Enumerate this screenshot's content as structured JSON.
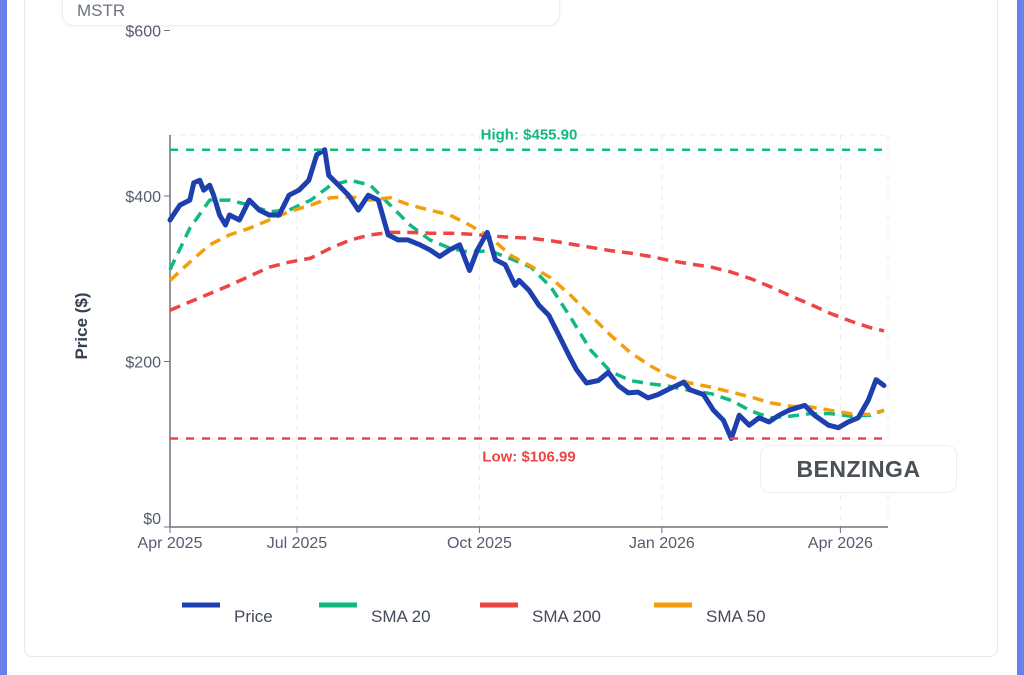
{
  "header": {
    "ticker": "MSTR"
  },
  "watermark": "BENZINGA",
  "chart_data": {
    "type": "line",
    "ylabel": "Price ($)",
    "xlabel": "",
    "ylim": [
      0,
      600
    ],
    "yticks": [
      {
        "value": 0,
        "label": "$0"
      },
      {
        "value": 200,
        "label": "$200"
      },
      {
        "value": 400,
        "label": "$400"
      },
      {
        "value": 600,
        "label": "$600"
      }
    ],
    "xlim": [
      "2025-04-28",
      "2026-04-25"
    ],
    "xticks": [
      {
        "date": "2025-04-28",
        "label": "Apr 2025"
      },
      {
        "date": "2025-07-01",
        "label": "Jul 2025"
      },
      {
        "date": "2025-10-01",
        "label": "Oct 2025"
      },
      {
        "date": "2026-01-01",
        "label": "Jan 2026"
      },
      {
        "date": "2026-04-01",
        "label": "Apr 2026"
      }
    ],
    "grid": true,
    "legend_position": "bottom",
    "colors": {
      "price": "#1e40af",
      "sma20": "#10b981",
      "sma200": "#ef4444",
      "sma50": "#f59e0b"
    },
    "annotations": {
      "high": {
        "value": 455.9,
        "label": "High: $455.90",
        "color": "#10b981"
      },
      "low": {
        "value": 106.99,
        "label": "Low: $106.99",
        "color": "#ef4444"
      }
    },
    "price": {
      "name": "Price",
      "dates": [
        "2025-04-28",
        "2025-05-03",
        "2025-05-08",
        "2025-05-10",
        "2025-05-13",
        "2025-05-15",
        "2025-05-18",
        "2025-05-20",
        "2025-05-23",
        "2025-05-26",
        "2025-05-28",
        "2025-06-02",
        "2025-06-07",
        "2025-06-12",
        "2025-06-17",
        "2025-06-22",
        "2025-06-27",
        "2025-07-02",
        "2025-07-07",
        "2025-07-11",
        "2025-07-15",
        "2025-07-17",
        "2025-07-22",
        "2025-07-27",
        "2025-08-01",
        "2025-08-06",
        "2025-08-11",
        "2025-08-16",
        "2025-08-21",
        "2025-08-26",
        "2025-09-01",
        "2025-09-06",
        "2025-09-11",
        "2025-09-16",
        "2025-09-21",
        "2025-09-26",
        "2025-09-30",
        "2025-10-05",
        "2025-10-09",
        "2025-10-14",
        "2025-10-19",
        "2025-10-21",
        "2025-10-26",
        "2025-10-31",
        "2025-11-05",
        "2025-11-10",
        "2025-11-15",
        "2025-11-19",
        "2025-11-24",
        "2025-11-30",
        "2025-12-05",
        "2025-12-10",
        "2025-12-15",
        "2025-12-20",
        "2025-12-25",
        "2025-12-30",
        "2026-01-04",
        "2026-01-12",
        "2026-01-15",
        "2026-01-22",
        "2026-01-27",
        "2026-02-01",
        "2026-02-05",
        "2026-02-09",
        "2026-02-14",
        "2026-02-19",
        "2026-02-24",
        "2026-03-01",
        "2026-03-06",
        "2026-03-14",
        "2026-03-19",
        "2026-03-26",
        "2026-03-31",
        "2026-04-05",
        "2026-04-10",
        "2026-04-15",
        "2026-04-19",
        "2026-04-23"
      ],
      "values": [
        371,
        389,
        395,
        416,
        419,
        407,
        413,
        401,
        377,
        365,
        377,
        371,
        395,
        383,
        377,
        377,
        401,
        407,
        419,
        450,
        455.9,
        425,
        413,
        401,
        383,
        401,
        395,
        353,
        347,
        347,
        341,
        335,
        327,
        335,
        341,
        310,
        335,
        356,
        323,
        317,
        292,
        298,
        286,
        268,
        256,
        232,
        208,
        190,
        174,
        177,
        187,
        171,
        162,
        163,
        156,
        160,
        166,
        175,
        166,
        160,
        141,
        129,
        106.99,
        135,
        123,
        132,
        127,
        135,
        141,
        147,
        135,
        123,
        120,
        127,
        132,
        153,
        178,
        171
      ]
    },
    "sma_dates": [
      "2025-04-28",
      "2025-05-08",
      "2025-05-18",
      "2025-05-28",
      "2025-06-07",
      "2025-06-17",
      "2025-06-27",
      "2025-07-08",
      "2025-07-18",
      "2025-07-28",
      "2025-08-07",
      "2025-08-17",
      "2025-08-27",
      "2025-09-06",
      "2025-09-16",
      "2025-09-26",
      "2025-10-06",
      "2025-10-17",
      "2025-10-27",
      "2025-11-06",
      "2025-11-16",
      "2025-11-26",
      "2025-12-06",
      "2025-12-16",
      "2025-12-26",
      "2026-01-05",
      "2026-01-15",
      "2026-01-26",
      "2026-02-05",
      "2026-02-15",
      "2026-02-25",
      "2026-03-07",
      "2026-03-17",
      "2026-03-27",
      "2026-04-06",
      "2026-04-16",
      "2026-04-23"
    ],
    "series": [
      {
        "key": "sma20",
        "name": "SMA 20",
        "values": [
          311,
          361,
          395,
          395,
          389,
          381,
          383,
          395,
          413,
          419,
          413,
          389,
          365,
          347,
          337,
          332,
          334,
          324,
          314,
          290,
          253,
          214,
          188,
          177,
          173,
          170,
          165,
          161,
          153,
          140,
          132,
          134,
          137,
          137,
          134,
          135,
          141
        ]
      },
      {
        "key": "sma200",
        "name": "SMA 200",
        "values": [
          262,
          272,
          282,
          292,
          303,
          314,
          320,
          325,
          337,
          347,
          353,
          356,
          356,
          355,
          355,
          354,
          352,
          350,
          349,
          346,
          342,
          338,
          334,
          331,
          327,
          322,
          318,
          314,
          308,
          300,
          290,
          279,
          269,
          258,
          249,
          241,
          237
        ]
      },
      {
        "key": "sma50",
        "name": "SMA 50",
        "values": [
          298,
          320,
          341,
          353,
          361,
          371,
          381,
          389,
          398,
          399,
          395,
          398,
          389,
          383,
          377,
          365,
          351,
          328,
          315,
          301,
          280,
          256,
          232,
          211,
          195,
          182,
          174,
          169,
          163,
          157,
          150,
          146,
          145,
          141,
          137,
          136,
          141
        ]
      }
    ],
    "legend": [
      {
        "key": "price",
        "label": "Price"
      },
      {
        "key": "sma20",
        "label": "SMA 20"
      },
      {
        "key": "sma200",
        "label": "SMA 200"
      },
      {
        "key": "sma50",
        "label": "SMA 50"
      }
    ]
  }
}
